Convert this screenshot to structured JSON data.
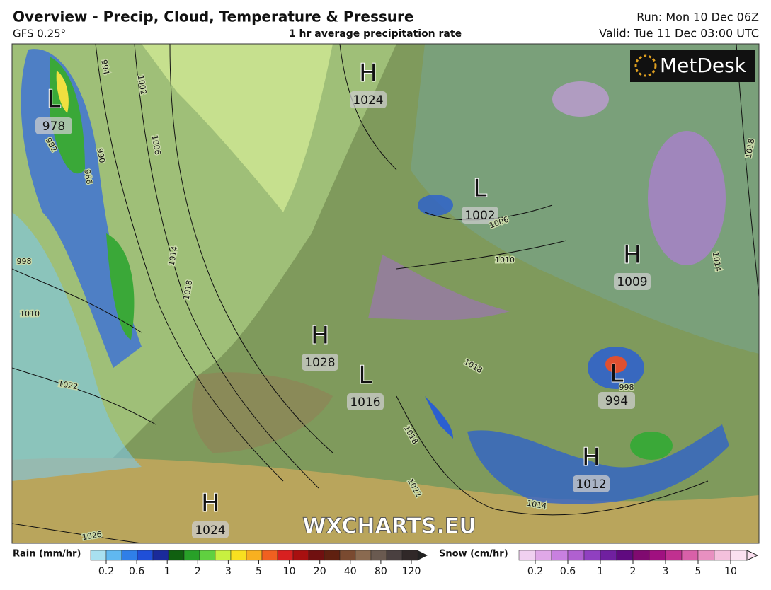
{
  "header": {
    "title": "Overview - Precip, Cloud, Temperature & Pressure",
    "model": "GFS 0.25°",
    "product": "1 hr average precipitation rate",
    "run": "Run: Mon 10 Dec 06Z",
    "valid": "Valid: Tue 11 Dec 03:00 UTC"
  },
  "logo": "MetDesk",
  "watermark": "WXCHARTS.EU",
  "pressure_centers": [
    {
      "type": "H",
      "value": "1024"
    },
    {
      "type": "L",
      "value": "978"
    },
    {
      "type": "L",
      "value": "1002"
    },
    {
      "type": "H",
      "value": "1009"
    },
    {
      "type": "H",
      "value": "1028"
    },
    {
      "type": "L",
      "value": "1016"
    },
    {
      "type": "L",
      "value": "994"
    },
    {
      "type": "H",
      "value": "1012"
    },
    {
      "type": "H",
      "value": "1024"
    }
  ],
  "isobar_labels": [
    "994",
    "1002",
    "990",
    "1006",
    "986",
    "982",
    "998",
    "1010",
    "1014",
    "1018",
    "1022",
    "1026",
    "1006",
    "1010",
    "1014",
    "1022",
    "1018",
    "1018",
    "1014",
    "1018",
    "998"
  ],
  "rain_legend": {
    "label": "Rain (mm/hr)",
    "ticks": [
      "0.2",
      "0.6",
      "1",
      "2",
      "3",
      "5",
      "10",
      "20",
      "40",
      "80",
      "120"
    ]
  },
  "snow_legend": {
    "label": "Snow (cm/hr)",
    "ticks": [
      "0.2",
      "0.6",
      "1",
      "2",
      "3",
      "5",
      "10"
    ]
  }
}
